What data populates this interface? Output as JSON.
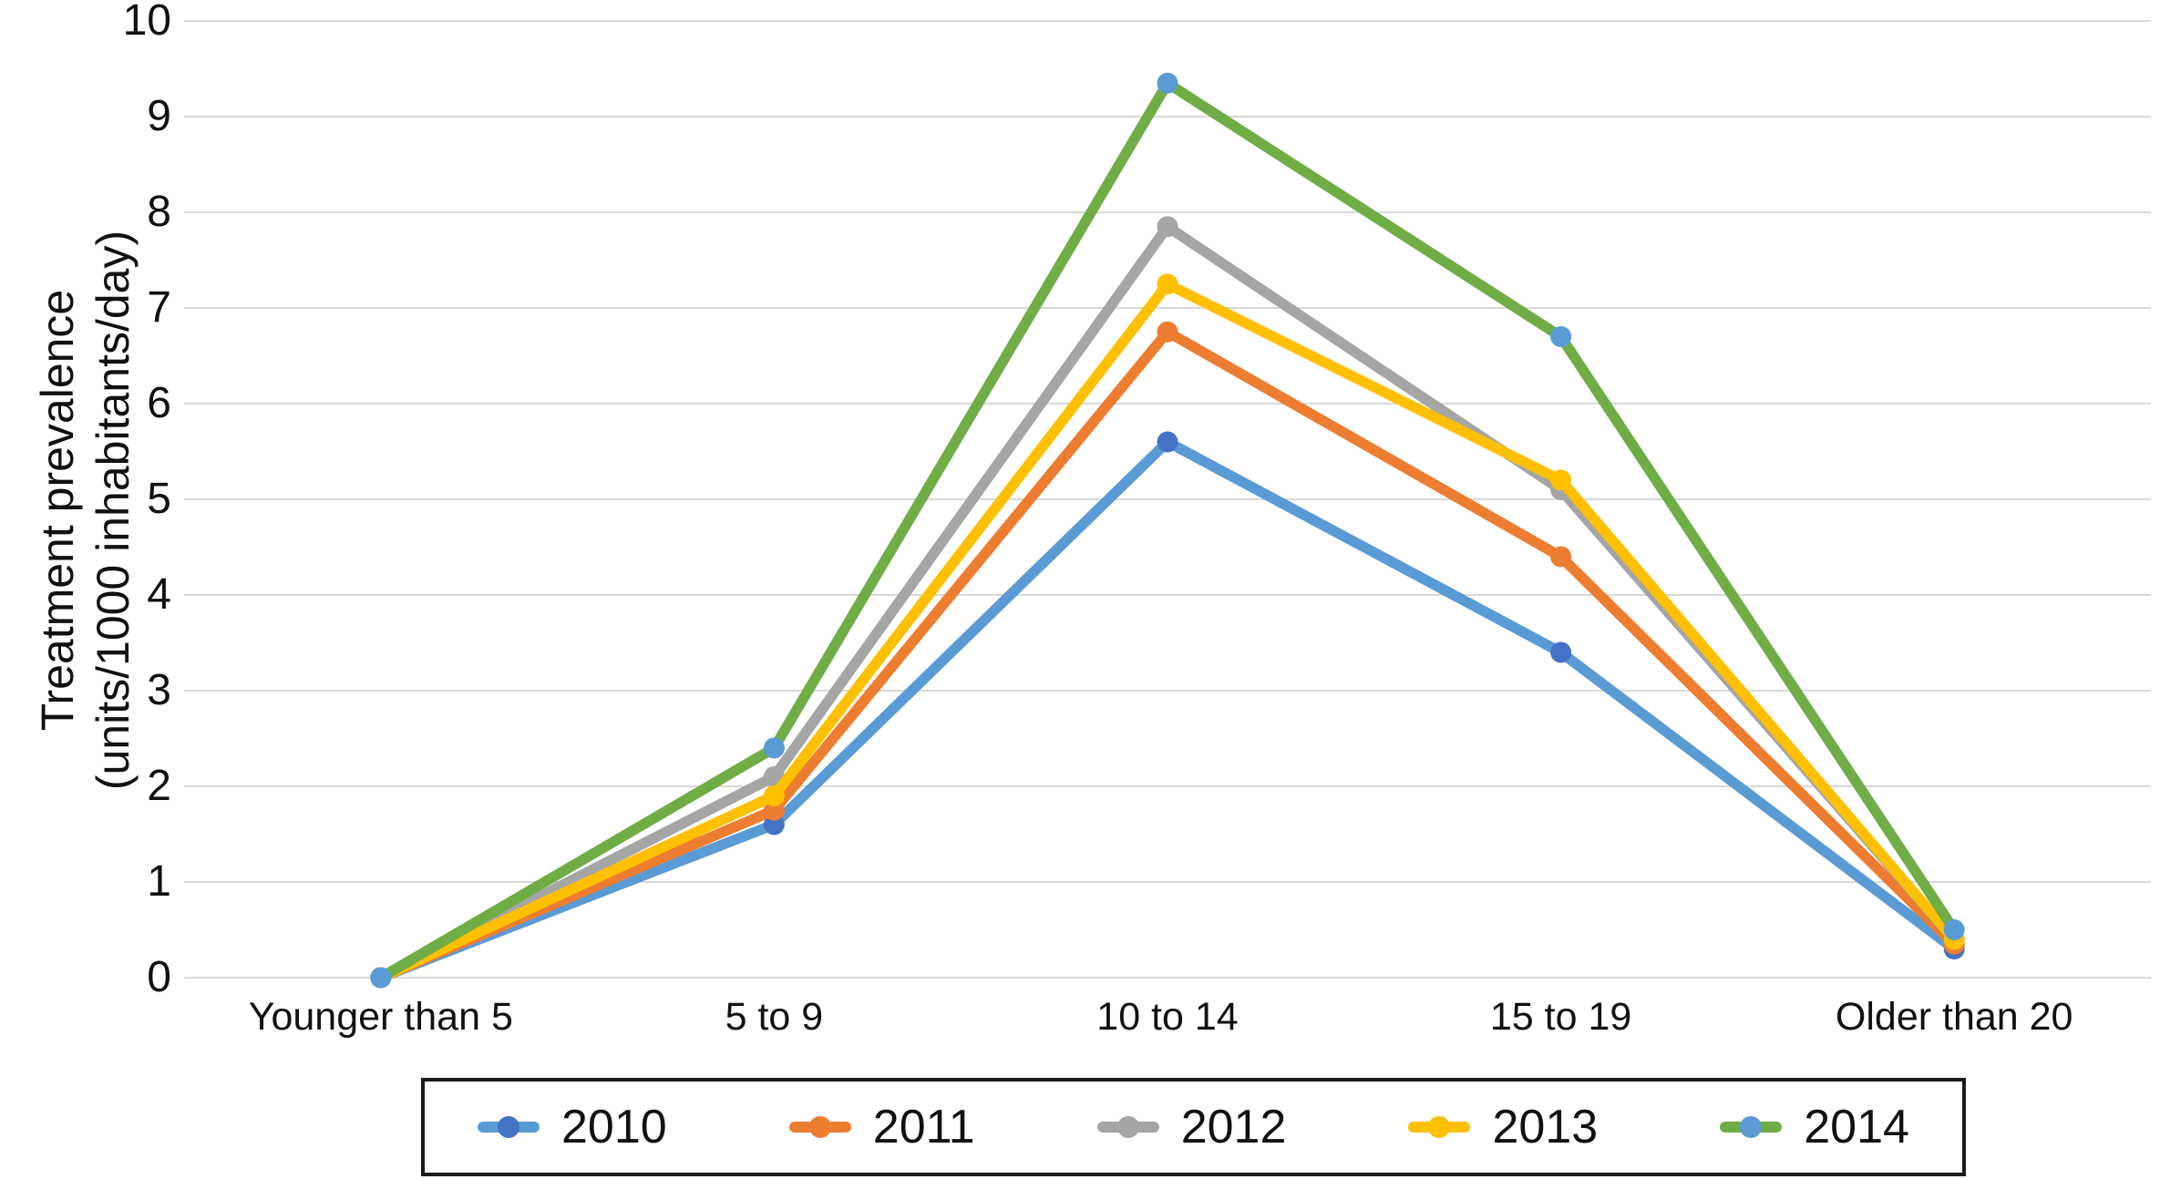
{
  "chart_data": {
    "type": "line",
    "title": "",
    "ylabel_line1": "Treatment prevalence",
    "ylabel_line2": "(units/1000 inhabitants/day)",
    "xlabel": "",
    "categories": [
      "Younger than 5",
      "5 to 9",
      "10 to 14",
      "15 to 19",
      "Older than 20"
    ],
    "yticks": [
      "0",
      "1",
      "2",
      "3",
      "4",
      "5",
      "6",
      "7",
      "8",
      "9",
      "10"
    ],
    "ylim": [
      0,
      10
    ],
    "grid": "horizontal-only",
    "gridline_color": "#D9D9D9",
    "legend_position": "bottom-box",
    "series": [
      {
        "name": "2010",
        "color": "#5B9BD5",
        "marker_color": "#4472C4",
        "values": [
          0,
          1.6,
          5.6,
          3.4,
          0.3
        ]
      },
      {
        "name": "2011",
        "color": "#ED7D31",
        "marker_color": "#ED7D31",
        "values": [
          0,
          1.75,
          6.75,
          4.4,
          0.35
        ]
      },
      {
        "name": "2012",
        "color": "#A5A5A5",
        "marker_color": "#A5A5A5",
        "values": [
          0,
          2.1,
          7.85,
          5.1,
          0.4
        ]
      },
      {
        "name": "2013",
        "color": "#FFC000",
        "marker_color": "#FFC000",
        "values": [
          0,
          1.9,
          7.25,
          5.2,
          0.4
        ]
      },
      {
        "name": "2014",
        "color": "#70AD47",
        "marker_color": "#5B9BD5",
        "values": [
          0,
          2.4,
          9.35,
          6.7,
          0.5
        ]
      }
    ]
  }
}
